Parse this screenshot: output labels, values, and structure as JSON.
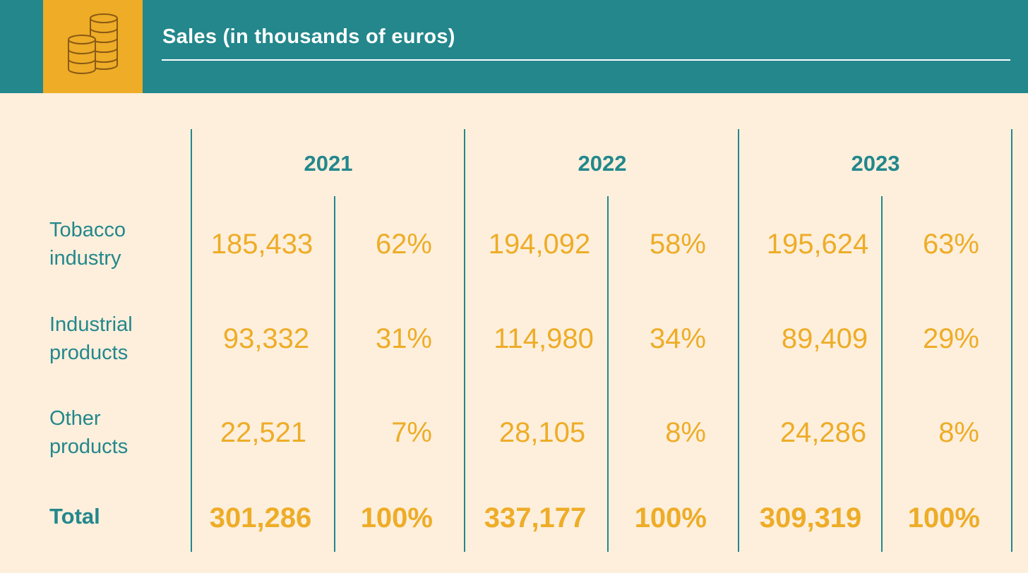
{
  "header": {
    "title": "Sales (in thousands of euros)",
    "icon": "coins-icon",
    "colors": {
      "bar": "#23878c",
      "icon_bg": "#eeac27",
      "background": "#fdefdc"
    }
  },
  "chart_data": {
    "type": "table",
    "title": "Sales (in thousands of euros)",
    "columns": [
      "2021",
      "2022",
      "2023"
    ],
    "rows": [
      {
        "label": "Tobacco industry",
        "line1": "Tobacco",
        "line2": "industry",
        "values": [
          "185,433",
          "194,092",
          "195,624"
        ],
        "shares": [
          "62%",
          "58%",
          "63%"
        ]
      },
      {
        "label": "Industrial products",
        "line1": "Industrial",
        "line2": "products",
        "values": [
          "93,332",
          "114,980",
          "89,409"
        ],
        "shares": [
          "31%",
          "34%",
          "29%"
        ]
      },
      {
        "label": "Other products",
        "line1": "Other",
        "line2": "products",
        "values": [
          "22,521",
          "28,105",
          "24,286"
        ],
        "shares": [
          "7%",
          "8%",
          "8%"
        ]
      }
    ],
    "total": {
      "label": "Total",
      "values": [
        "301,286",
        "337,177",
        "309,319"
      ],
      "shares": [
        "100%",
        "100%",
        "100%"
      ]
    }
  }
}
